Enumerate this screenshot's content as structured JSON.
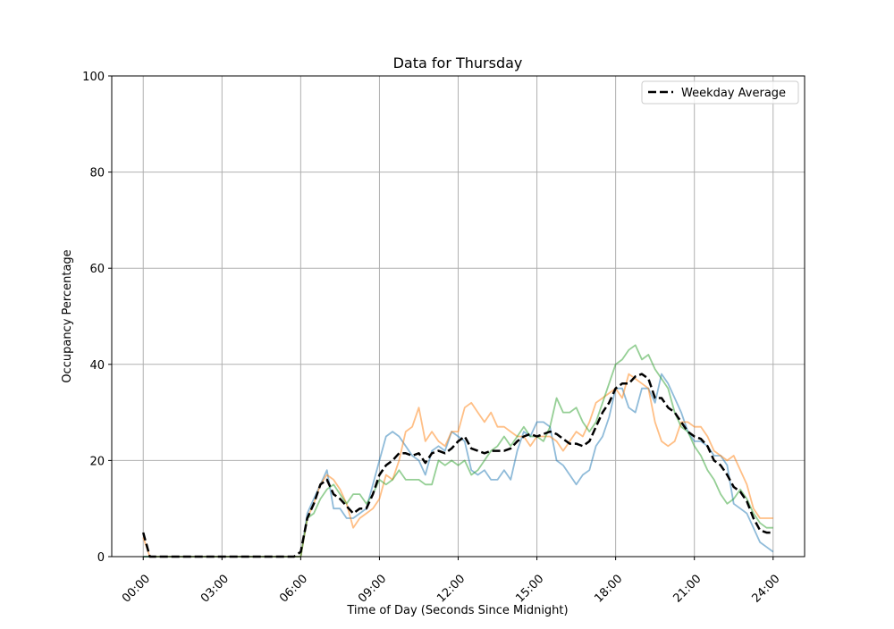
{
  "chart_data": {
    "type": "line",
    "title": "Data for Thursday",
    "xlabel": "Time of Day (Seconds Since Midnight)",
    "ylabel": "Occupancy Percentage",
    "ylim": [
      0,
      100
    ],
    "xlim": [
      "-01:12",
      "25:12"
    ],
    "xticks": [
      "00:00",
      "03:00",
      "06:00",
      "09:00",
      "12:00",
      "15:00",
      "18:00",
      "21:00",
      "24:00"
    ],
    "yticks": [
      0,
      20,
      40,
      60,
      80,
      100
    ],
    "grid": true,
    "legend": {
      "placement": "top-right",
      "entries": [
        "Weekday Average"
      ]
    },
    "x": [
      "00:00",
      "00:15",
      "00:30",
      "00:45",
      "01:00",
      "01:15",
      "01:30",
      "01:45",
      "02:00",
      "02:15",
      "02:30",
      "02:45",
      "03:00",
      "03:15",
      "03:30",
      "03:45",
      "04:00",
      "04:15",
      "04:30",
      "04:45",
      "05:00",
      "05:15",
      "05:30",
      "05:45",
      "06:00",
      "06:15",
      "06:30",
      "06:45",
      "07:00",
      "07:15",
      "07:30",
      "07:45",
      "08:00",
      "08:15",
      "08:30",
      "08:45",
      "09:00",
      "09:15",
      "09:30",
      "09:45",
      "10:00",
      "10:15",
      "10:30",
      "10:45",
      "11:00",
      "11:15",
      "11:30",
      "11:45",
      "12:00",
      "12:15",
      "12:30",
      "12:45",
      "13:00",
      "13:15",
      "13:30",
      "13:45",
      "14:00",
      "14:15",
      "14:30",
      "14:45",
      "15:00",
      "15:15",
      "15:30",
      "15:45",
      "16:00",
      "16:15",
      "16:30",
      "16:45",
      "17:00",
      "17:15",
      "17:30",
      "17:45",
      "18:00",
      "18:15",
      "18:30",
      "18:45",
      "19:00",
      "19:15",
      "19:30",
      "19:45",
      "20:00",
      "20:15",
      "20:30",
      "20:45",
      "21:00",
      "21:15",
      "21:30",
      "21:45",
      "22:00",
      "22:15",
      "22:30",
      "22:45",
      "23:00",
      "23:15",
      "23:30",
      "23:45",
      "24:00"
    ],
    "series": [
      {
        "color": "#1f77b4",
        "alpha": 0.5,
        "style": "solid",
        "values": [
          0,
          0,
          0,
          0,
          0,
          0,
          0,
          0,
          0,
          0,
          0,
          0,
          0,
          0,
          0,
          0,
          0,
          0,
          0,
          0,
          0,
          0,
          0,
          0,
          0,
          9,
          12,
          15,
          18,
          10,
          10,
          8,
          8,
          9,
          10,
          15,
          20,
          25,
          26,
          25,
          23,
          21,
          20,
          17,
          22,
          23,
          22,
          26,
          25,
          24,
          18,
          17,
          18,
          16,
          16,
          18,
          16,
          22,
          26,
          25,
          28,
          28,
          27,
          20,
          19,
          17,
          15,
          17,
          18,
          23,
          25,
          29,
          35,
          35,
          31,
          30,
          35,
          35,
          32,
          38,
          36,
          33,
          30,
          26,
          24,
          24,
          23,
          21,
          21,
          19,
          11,
          10,
          9,
          6,
          3,
          2,
          1
        ]
      },
      {
        "color": "#ff7f0e",
        "alpha": 0.5,
        "style": "solid",
        "values": [
          4,
          0,
          0,
          0,
          0,
          0,
          0,
          0,
          0,
          0,
          0,
          0,
          0,
          0,
          0,
          0,
          0,
          0,
          0,
          0,
          0,
          0,
          0,
          0,
          0,
          8,
          11,
          15,
          17,
          16,
          14,
          11,
          6,
          8,
          9,
          10,
          12,
          17,
          16,
          20,
          26,
          27,
          31,
          24,
          26,
          24,
          23,
          26,
          26,
          31,
          32,
          30,
          28,
          30,
          27,
          27,
          26,
          25,
          25,
          23,
          25,
          25,
          25,
          24,
          22,
          24,
          26,
          25,
          28,
          32,
          33,
          34,
          35,
          33,
          38,
          37,
          36,
          35,
          28,
          24,
          23,
          24,
          28,
          28,
          27,
          27,
          25,
          22,
          21,
          20,
          21,
          18,
          15,
          10,
          8,
          8,
          8
        ]
      },
      {
        "color": "#2ca02c",
        "alpha": 0.5,
        "style": "solid",
        "values": [
          0,
          0,
          0,
          0,
          0,
          0,
          0,
          0,
          0,
          0,
          0,
          0,
          0,
          0,
          0,
          0,
          0,
          0,
          0,
          0,
          0,
          0,
          0,
          0,
          0,
          8,
          9,
          12,
          14,
          15,
          13,
          11,
          13,
          13,
          11,
          13,
          16,
          15,
          16,
          18,
          16,
          16,
          16,
          15,
          15,
          20,
          19,
          20,
          19,
          20,
          17,
          18,
          20,
          22,
          23,
          25,
          23,
          25,
          27,
          25,
          25,
          24,
          27,
          33,
          30,
          30,
          31,
          28,
          26,
          28,
          32,
          36,
          40,
          41,
          43,
          44,
          41,
          42,
          39,
          37,
          35,
          30,
          27,
          26,
          23,
          21,
          18,
          16,
          13,
          11,
          12,
          14,
          12,
          9,
          7,
          6,
          6
        ]
      },
      {
        "name": "Weekday Average",
        "color": "#000000",
        "alpha": 1,
        "style": "dashed",
        "values": [
          5,
          0,
          0,
          0,
          0,
          0,
          0,
          0,
          0,
          0,
          0,
          0,
          0,
          0,
          0,
          0,
          0,
          0,
          0,
          0,
          0,
          0,
          0,
          0,
          1,
          8,
          11,
          15,
          16,
          13,
          12,
          10.5,
          9,
          10,
          10,
          13,
          17,
          19,
          20,
          21.5,
          21.5,
          21,
          21.5,
          19.5,
          21.5,
          22,
          21.5,
          22.5,
          24,
          25,
          22.5,
          22,
          21.5,
          22,
          22,
          22,
          22.5,
          24,
          25,
          25.5,
          25,
          25.5,
          26,
          25.5,
          24.5,
          23.5,
          23.5,
          23,
          24,
          27,
          30,
          32,
          35,
          36,
          36,
          37.5,
          38,
          37,
          33,
          33,
          31,
          30,
          28,
          26,
          25,
          24.5,
          23,
          20,
          19,
          17,
          14.5,
          13.5,
          11.5,
          8,
          5.5,
          5,
          5
        ]
      }
    ]
  }
}
